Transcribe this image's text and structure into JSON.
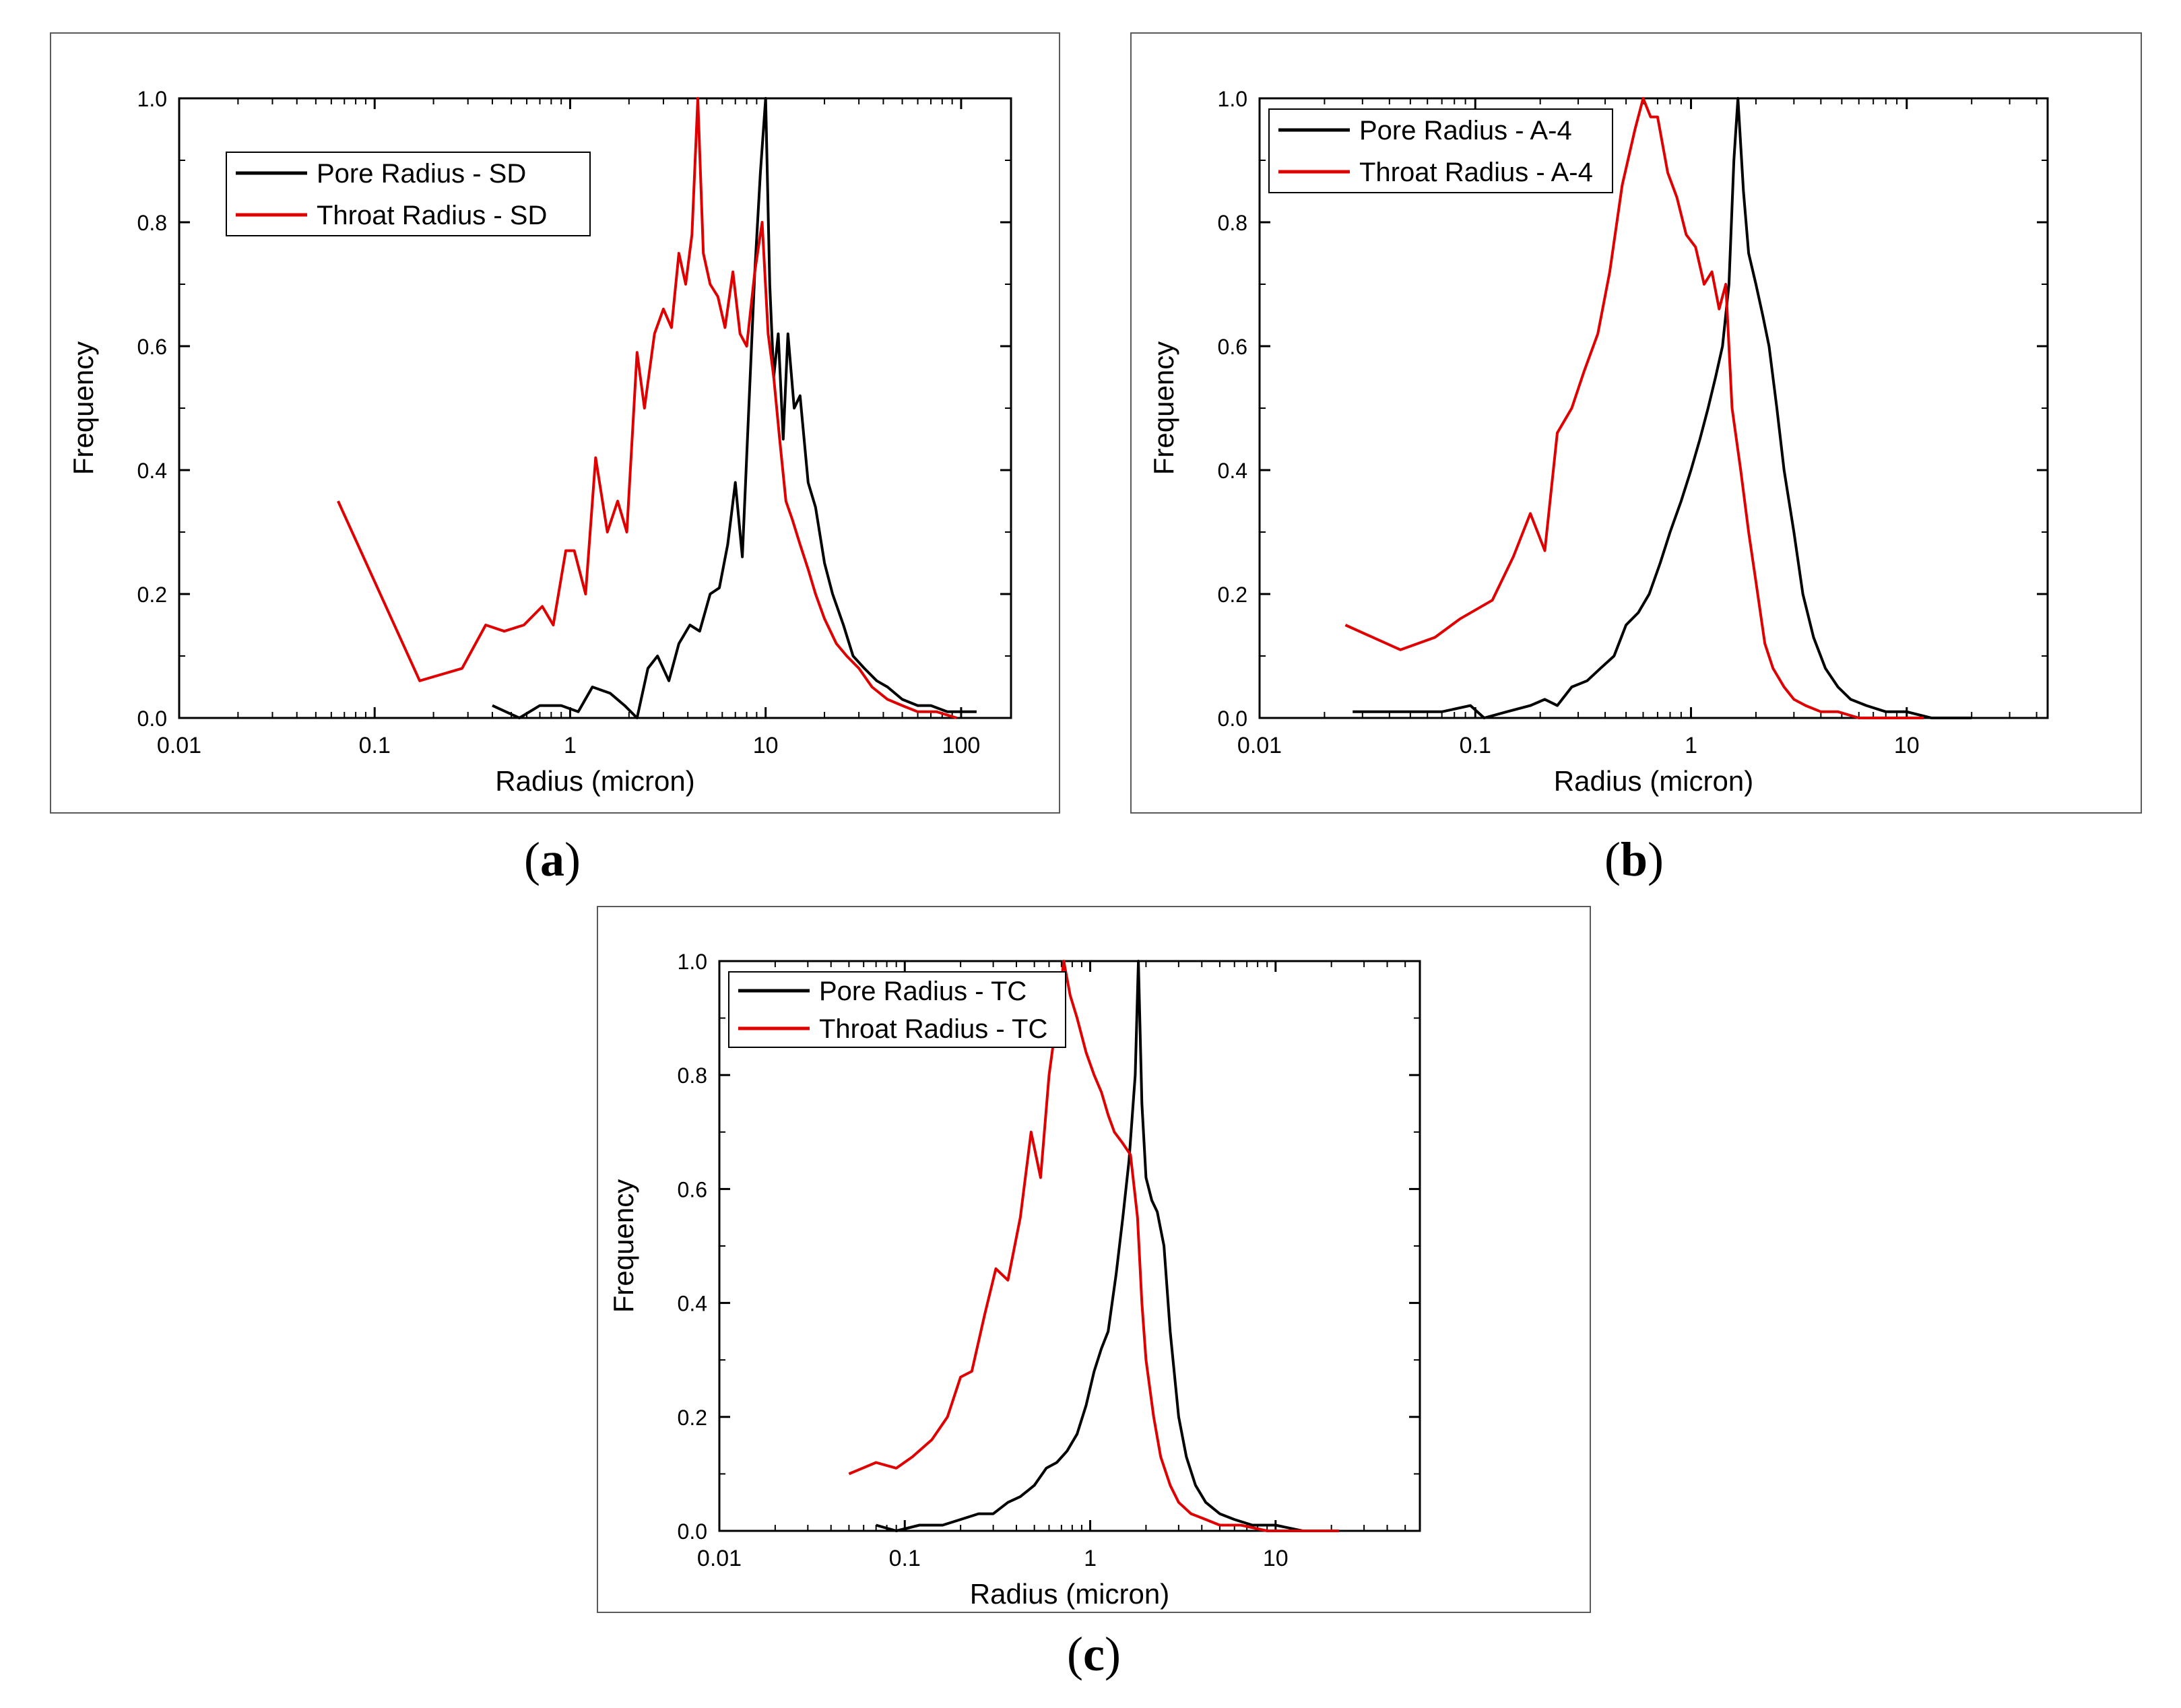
{
  "chart_data": [
    {
      "id": "a",
      "type": "line",
      "caption_letter": "a",
      "xscale": "log",
      "xlim": [
        0.01,
        180
      ],
      "ylim": [
        0,
        1.0
      ],
      "xlabel": "Radius (micron)",
      "ylabel": "Frequency",
      "xticks": [
        0.01,
        0.1,
        1,
        10,
        100
      ],
      "xtick_labels": [
        "0.01",
        "0.1",
        "1",
        "10",
        "100"
      ],
      "yticks": [
        0.0,
        0.2,
        0.4,
        0.6,
        0.8,
        1.0
      ],
      "ytick_labels": [
        "0.0",
        "0.2",
        "0.4",
        "0.6",
        "0.8",
        "1.0"
      ],
      "legend_position": "top-left",
      "series": [
        {
          "name": "Pore Radius - SD",
          "color": "#000000",
          "x": [
            0.4,
            0.55,
            0.7,
            0.9,
            1.1,
            1.3,
            1.6,
            1.9,
            2.2,
            2.5,
            2.8,
            3.2,
            3.6,
            4.1,
            4.6,
            5.2,
            5.8,
            6.4,
            7.0,
            7.6,
            8.2,
            8.8,
            9.4,
            10.0,
            10.5,
            11.0,
            11.6,
            12.3,
            13.0,
            14.0,
            15.0,
            16.5,
            18.0,
            20.0,
            22.0,
            25.0,
            28.0,
            32.0,
            37.0,
            42.0,
            50.0,
            60.0,
            70.0,
            85.0,
            100.0,
            120.0
          ],
          "y": [
            0.02,
            0.0,
            0.02,
            0.02,
            0.01,
            0.05,
            0.04,
            0.02,
            0.0,
            0.08,
            0.1,
            0.06,
            0.12,
            0.15,
            0.14,
            0.2,
            0.21,
            0.28,
            0.38,
            0.26,
            0.5,
            0.72,
            0.88,
            1.0,
            0.7,
            0.55,
            0.62,
            0.45,
            0.62,
            0.5,
            0.52,
            0.38,
            0.34,
            0.25,
            0.2,
            0.15,
            0.1,
            0.08,
            0.06,
            0.05,
            0.03,
            0.02,
            0.02,
            0.01,
            0.01,
            0.01
          ]
        },
        {
          "name": "Throat Radius - SD",
          "color": "#e00000",
          "x": [
            0.065,
            0.17,
            0.28,
            0.37,
            0.46,
            0.58,
            0.72,
            0.82,
            0.95,
            1.05,
            1.2,
            1.35,
            1.55,
            1.75,
            1.95,
            2.2,
            2.4,
            2.7,
            3.0,
            3.3,
            3.6,
            3.9,
            4.2,
            4.5,
            4.8,
            5.2,
            5.7,
            6.2,
            6.8,
            7.4,
            8.0,
            8.8,
            9.6,
            10.3,
            11.0,
            11.8,
            12.7,
            13.7,
            15.0,
            16.5,
            18.0,
            20.0,
            23.0,
            26.0,
            30.0,
            35.0,
            42.0,
            50.0,
            60.0,
            75.0,
            95.0
          ],
          "y": [
            0.35,
            0.06,
            0.08,
            0.15,
            0.14,
            0.15,
            0.18,
            0.15,
            0.27,
            0.27,
            0.2,
            0.42,
            0.3,
            0.35,
            0.3,
            0.59,
            0.5,
            0.62,
            0.66,
            0.63,
            0.75,
            0.7,
            0.78,
            1.0,
            0.75,
            0.7,
            0.68,
            0.63,
            0.72,
            0.62,
            0.6,
            0.72,
            0.8,
            0.62,
            0.55,
            0.45,
            0.35,
            0.32,
            0.28,
            0.24,
            0.2,
            0.16,
            0.12,
            0.1,
            0.08,
            0.05,
            0.03,
            0.02,
            0.01,
            0.01,
            0.0
          ]
        }
      ]
    },
    {
      "id": "b",
      "type": "line",
      "caption_letter": "b",
      "xscale": "log",
      "xlim": [
        0.01,
        45
      ],
      "ylim": [
        0,
        1.0
      ],
      "xlabel": "Radius (micron)",
      "ylabel": "Frequency",
      "xticks": [
        0.01,
        0.1,
        1,
        10
      ],
      "xtick_labels": [
        "0.01",
        "0.1",
        "1",
        "10"
      ],
      "yticks": [
        0.0,
        0.2,
        0.4,
        0.6,
        0.8,
        1.0
      ],
      "ytick_labels": [
        "0.0",
        "0.2",
        "0.4",
        "0.6",
        "0.8",
        "1.0"
      ],
      "legend_position": "top-left",
      "series": [
        {
          "name": "Pore Radius - A-4",
          "color": "#000000",
          "x": [
            0.027,
            0.045,
            0.07,
            0.095,
            0.11,
            0.14,
            0.18,
            0.21,
            0.24,
            0.28,
            0.33,
            0.38,
            0.44,
            0.5,
            0.57,
            0.64,
            0.72,
            0.8,
            0.9,
            1.0,
            1.1,
            1.2,
            1.3,
            1.4,
            1.5,
            1.58,
            1.65,
            1.75,
            1.85,
            2.0,
            2.15,
            2.3,
            2.5,
            2.7,
            3.0,
            3.3,
            3.7,
            4.2,
            4.8,
            5.5,
            6.5,
            8.0,
            10.0,
            13.0,
            20.0
          ],
          "y": [
            0.01,
            0.01,
            0.01,
            0.02,
            0.0,
            0.01,
            0.02,
            0.03,
            0.02,
            0.05,
            0.06,
            0.08,
            0.1,
            0.15,
            0.17,
            0.2,
            0.25,
            0.3,
            0.35,
            0.4,
            0.45,
            0.5,
            0.55,
            0.6,
            0.7,
            0.9,
            1.0,
            0.85,
            0.75,
            0.7,
            0.65,
            0.6,
            0.5,
            0.4,
            0.3,
            0.2,
            0.13,
            0.08,
            0.05,
            0.03,
            0.02,
            0.01,
            0.01,
            0.0,
            0.0
          ]
        },
        {
          "name": "Throat Radius - A-4",
          "color": "#e00000",
          "x": [
            0.025,
            0.045,
            0.065,
            0.085,
            0.12,
            0.15,
            0.18,
            0.21,
            0.24,
            0.28,
            0.32,
            0.37,
            0.42,
            0.48,
            0.55,
            0.6,
            0.65,
            0.7,
            0.78,
            0.86,
            0.95,
            1.05,
            1.15,
            1.25,
            1.35,
            1.45,
            1.55,
            1.7,
            1.85,
            2.0,
            2.2,
            2.4,
            2.7,
            3.0,
            3.4,
            4.0,
            4.8,
            6.0,
            8.0,
            12.0
          ],
          "y": [
            0.15,
            0.11,
            0.13,
            0.16,
            0.19,
            0.26,
            0.33,
            0.27,
            0.46,
            0.5,
            0.56,
            0.62,
            0.72,
            0.86,
            0.95,
            1.0,
            0.97,
            0.97,
            0.88,
            0.84,
            0.78,
            0.76,
            0.7,
            0.72,
            0.66,
            0.7,
            0.5,
            0.4,
            0.3,
            0.22,
            0.12,
            0.08,
            0.05,
            0.03,
            0.02,
            0.01,
            0.01,
            0.0,
            0.0,
            0.0
          ]
        }
      ]
    },
    {
      "id": "c",
      "type": "line",
      "caption_letter": "c",
      "xscale": "log",
      "xlim": [
        0.01,
        60
      ],
      "ylim": [
        0,
        1.0
      ],
      "xlabel": "Radius (micron)",
      "ylabel": "Frequency",
      "xticks": [
        0.01,
        0.1,
        1,
        10
      ],
      "xtick_labels": [
        "0.01",
        "0.1",
        "1",
        "10"
      ],
      "yticks": [
        0.0,
        0.2,
        0.4,
        0.6,
        0.8,
        1.0
      ],
      "ytick_labels": [
        "0.0",
        "0.2",
        "0.4",
        "0.6",
        "0.8",
        "1.0"
      ],
      "legend_position": "top-left",
      "series": [
        {
          "name": "Pore Radius - TC",
          "color": "#000000",
          "x": [
            0.07,
            0.09,
            0.12,
            0.16,
            0.2,
            0.25,
            0.3,
            0.36,
            0.42,
            0.5,
            0.58,
            0.66,
            0.75,
            0.85,
            0.95,
            1.05,
            1.15,
            1.25,
            1.38,
            1.5,
            1.62,
            1.75,
            1.82,
            1.9,
            2.0,
            2.15,
            2.3,
            2.5,
            2.7,
            3.0,
            3.3,
            3.7,
            4.2,
            5.0,
            6.0,
            7.5,
            10.0,
            14.0,
            20.0
          ],
          "y": [
            0.01,
            0.0,
            0.01,
            0.01,
            0.02,
            0.03,
            0.03,
            0.05,
            0.06,
            0.08,
            0.11,
            0.12,
            0.14,
            0.17,
            0.22,
            0.28,
            0.32,
            0.35,
            0.45,
            0.55,
            0.65,
            0.8,
            1.0,
            0.75,
            0.62,
            0.58,
            0.56,
            0.5,
            0.35,
            0.2,
            0.13,
            0.08,
            0.05,
            0.03,
            0.02,
            0.01,
            0.01,
            0.0,
            0.0
          ]
        },
        {
          "name": "Throat Radius - TC",
          "color": "#e00000",
          "x": [
            0.05,
            0.07,
            0.09,
            0.11,
            0.14,
            0.17,
            0.2,
            0.23,
            0.27,
            0.31,
            0.36,
            0.42,
            0.48,
            0.54,
            0.6,
            0.66,
            0.72,
            0.78,
            0.85,
            0.95,
            1.05,
            1.15,
            1.25,
            1.35,
            1.5,
            1.65,
            1.8,
            1.9,
            2.0,
            2.2,
            2.4,
            2.7,
            3.0,
            3.5,
            4.2,
            5.0,
            6.5,
            9.0,
            14.0,
            22.0
          ],
          "y": [
            0.1,
            0.12,
            0.11,
            0.13,
            0.16,
            0.2,
            0.27,
            0.28,
            0.38,
            0.46,
            0.44,
            0.55,
            0.7,
            0.62,
            0.8,
            0.9,
            1.0,
            0.94,
            0.9,
            0.84,
            0.8,
            0.77,
            0.73,
            0.7,
            0.68,
            0.66,
            0.55,
            0.4,
            0.3,
            0.2,
            0.13,
            0.08,
            0.05,
            0.03,
            0.02,
            0.01,
            0.01,
            0.0,
            0.0,
            0.0
          ]
        }
      ]
    }
  ]
}
